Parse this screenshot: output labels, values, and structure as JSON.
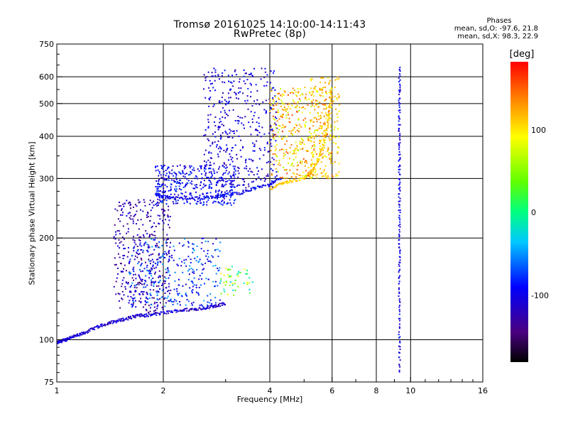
{
  "chart_data": {
    "type": "scatter",
    "title": "Tromsø 20161025 14:10:00-14:11:43",
    "subtitle": "RwPretec (8p)",
    "xlabel": "Frequency [MHz]",
    "ylabel": "Stationary phase Virtual Height [km]",
    "x_scale": "log",
    "y_scale": "log",
    "xlim": [
      1,
      16
    ],
    "ylim": [
      75,
      750
    ],
    "x_ticks": [
      "1",
      "2",
      "4",
      "6",
      "8",
      "10",
      "16"
    ],
    "y_ticks": [
      "75",
      "100",
      "200",
      "300",
      "400",
      "500",
      "600",
      "750"
    ],
    "grid": true,
    "stats": {
      "heading": "Phases",
      "line_o": "mean, sd,O: -97.6, 21.8",
      "line_x": "mean, sd,X:  98.3, 22.9"
    },
    "colorbar": {
      "label": "[deg]",
      "ticks": [
        "100",
        "0",
        "-100"
      ],
      "colormap": "rainbow",
      "range_deg": [
        -180,
        180
      ]
    },
    "series": [
      {
        "component": "O-mode lower trace",
        "color_phase_deg": -110,
        "points": [
          [
            1.0,
            98
          ],
          [
            1.03,
            99
          ],
          [
            1.06,
            100
          ],
          [
            1.1,
            102
          ],
          [
            1.15,
            103
          ],
          [
            1.2,
            105
          ],
          [
            1.3,
            109
          ],
          [
            1.4,
            112
          ],
          [
            1.5,
            114
          ],
          [
            1.6,
            116
          ],
          [
            1.7,
            118
          ],
          [
            1.8,
            118
          ],
          [
            2.0,
            120
          ],
          [
            2.2,
            122
          ],
          [
            2.4,
            123
          ],
          [
            2.6,
            124
          ],
          [
            2.8,
            126
          ],
          [
            3.0,
            128
          ]
        ]
      },
      {
        "component": "O-mode F trace",
        "color_phase_deg": -95,
        "points": [
          [
            1.9,
            270
          ],
          [
            2.0,
            265
          ],
          [
            2.2,
            262
          ],
          [
            2.5,
            262
          ],
          [
            2.8,
            265
          ],
          [
            3.0,
            268
          ],
          [
            3.3,
            272
          ],
          [
            3.6,
            280
          ],
          [
            4.0,
            290
          ],
          [
            4.3,
            300
          ]
        ]
      },
      {
        "component": "X-mode F trace",
        "color_phase_deg": 110,
        "points": [
          [
            4.0,
            280
          ],
          [
            4.3,
            290
          ],
          [
            4.6,
            295
          ],
          [
            5.0,
            300
          ],
          [
            5.2,
            310
          ],
          [
            5.4,
            330
          ],
          [
            5.6,
            360
          ],
          [
            5.8,
            420
          ],
          [
            5.9,
            480
          ],
          [
            6.0,
            560
          ]
        ]
      },
      {
        "component": "vertical interference line",
        "color_phase_deg": -100,
        "points": [
          [
            9.3,
            80
          ],
          [
            9.3,
            150
          ],
          [
            9.3,
            250
          ],
          [
            9.3,
            400
          ],
          [
            9.3,
            650
          ]
        ]
      }
    ]
  }
}
